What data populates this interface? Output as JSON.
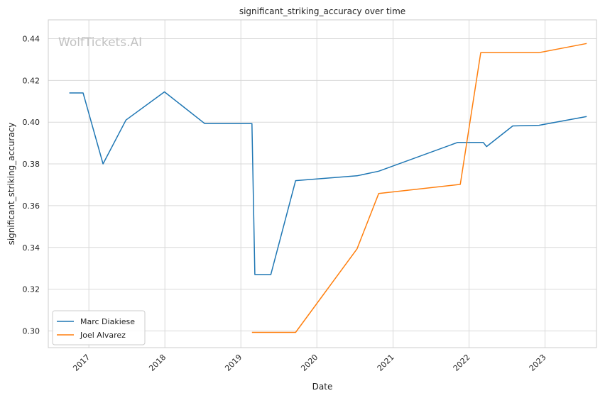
{
  "chart_data": {
    "type": "line",
    "title": "significant_striking_accuracy over time",
    "xlabel": "Date",
    "ylabel": "significant_striking_accuracy",
    "watermark": "WolfTickets.AI",
    "xlim": [
      "2016-06-20",
      "2023-09-05"
    ],
    "ylim": [
      0.292,
      0.449
    ],
    "x_ticks": [
      {
        "date": "2017-01-01",
        "label": "2017"
      },
      {
        "date": "2018-01-01",
        "label": "2018"
      },
      {
        "date": "2019-01-01",
        "label": "2019"
      },
      {
        "date": "2020-01-01",
        "label": "2020"
      },
      {
        "date": "2021-01-01",
        "label": "2021"
      },
      {
        "date": "2022-01-01",
        "label": "2022"
      },
      {
        "date": "2023-01-01",
        "label": "2023"
      }
    ],
    "y_ticks": [
      0.3,
      0.32,
      0.34,
      0.36,
      0.38,
      0.4,
      0.42,
      0.44
    ],
    "y_tick_labels": [
      "0.30",
      "0.32",
      "0.34",
      "0.36",
      "0.38",
      "0.40",
      "0.42",
      "0.44"
    ],
    "grid": true,
    "legend_position": "lower-left",
    "series": [
      {
        "name": "Marc Diakiese",
        "color": "#1f77b4",
        "points": [
          [
            "2016-09-29",
            0.414
          ],
          [
            "2016-12-04",
            0.414
          ],
          [
            "2017-03-10",
            0.38
          ],
          [
            "2017-06-28",
            0.401
          ],
          [
            "2017-12-30",
            0.4145
          ],
          [
            "2018-07-12",
            0.3993
          ],
          [
            "2019-02-23",
            0.3993
          ],
          [
            "2019-03-09",
            0.327
          ],
          [
            "2019-05-25",
            0.327
          ],
          [
            "2019-09-21",
            0.372
          ],
          [
            "2020-07-12",
            0.3743
          ],
          [
            "2020-10-24",
            0.3765
          ],
          [
            "2021-11-08",
            0.3903
          ],
          [
            "2022-03-10",
            0.3903
          ],
          [
            "2022-03-26",
            0.3883
          ],
          [
            "2022-07-30",
            0.3982
          ],
          [
            "2022-12-03",
            0.3985
          ],
          [
            "2023-07-20",
            0.4027
          ]
        ]
      },
      {
        "name": "Joel Alvarez",
        "color": "#ff7f0e",
        "points": [
          [
            "2019-02-23",
            0.2993
          ],
          [
            "2019-09-21",
            0.2993
          ],
          [
            "2020-07-12",
            0.3393
          ],
          [
            "2020-10-24",
            0.3658
          ],
          [
            "2021-11-20",
            0.3702
          ],
          [
            "2022-02-26",
            0.4333
          ],
          [
            "2022-12-03",
            0.4333
          ],
          [
            "2023-07-20",
            0.4377
          ]
        ]
      }
    ]
  }
}
